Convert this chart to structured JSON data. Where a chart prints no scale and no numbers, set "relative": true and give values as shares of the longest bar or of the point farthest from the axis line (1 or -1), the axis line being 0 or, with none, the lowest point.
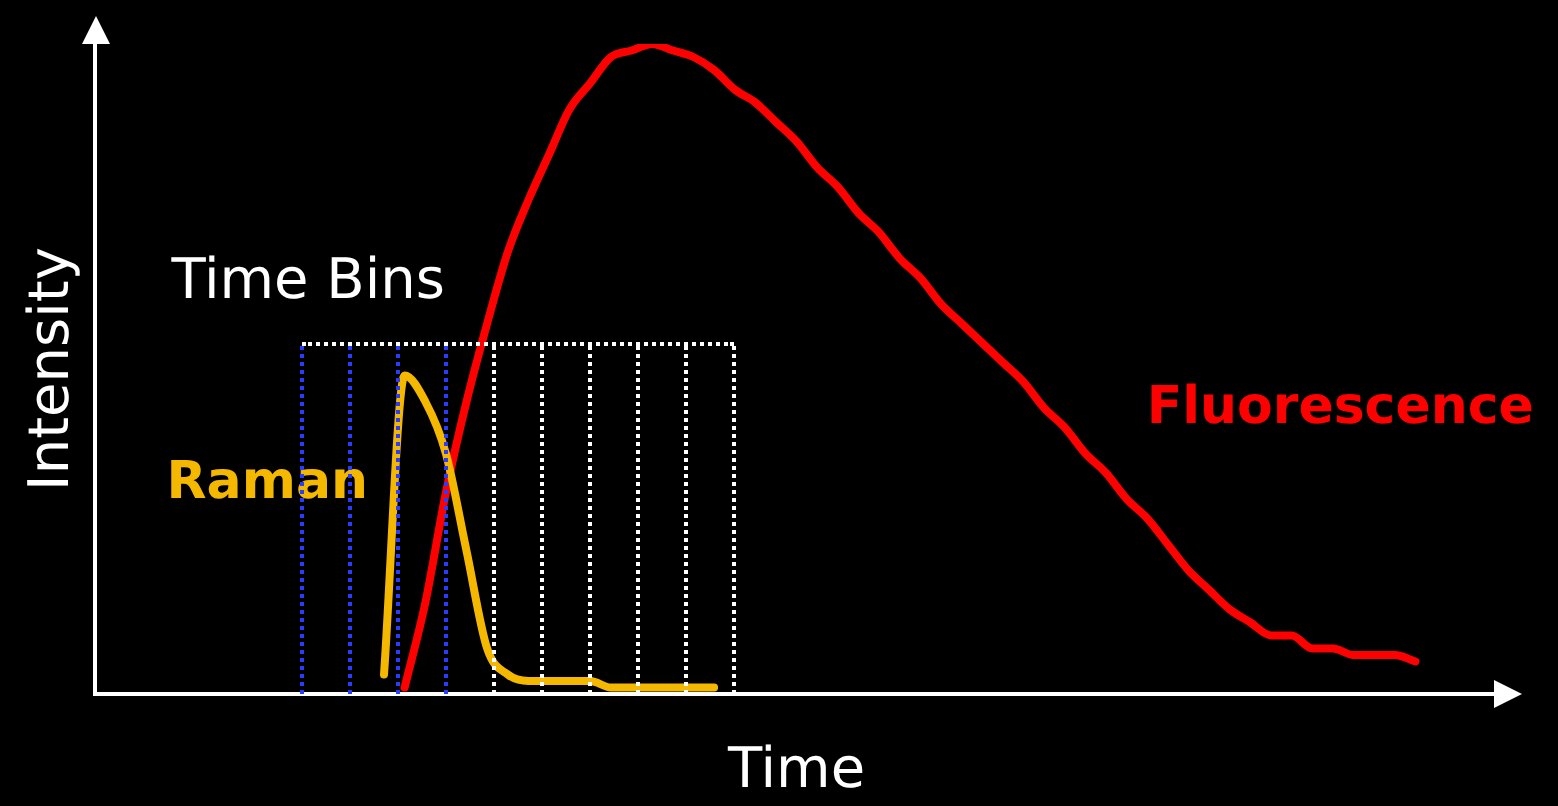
{
  "chart_data": {
    "type": "line",
    "relative": true,
    "xlabel": "Time",
    "ylabel": "Intensity",
    "marker": "none",
    "line_style": "solid",
    "annotations": [
      "Time Bins"
    ],
    "categories": [
      null,
      null,
      null,
      null,
      null,
      null,
      null,
      null,
      null,
      null,
      null,
      null,
      null,
      null,
      null,
      null,
      null,
      null,
      null,
      null,
      null,
      null,
      null,
      null,
      null,
      null,
      null,
      null,
      null,
      null,
      null,
      null,
      null,
      null,
      null,
      null,
      null,
      null,
      null,
      null,
      null,
      null,
      null,
      null,
      null,
      null,
      null,
      null,
      null,
      null,
      null,
      null,
      null,
      null,
      null,
      null,
      null,
      null,
      null,
      null,
      null,
      null,
      null,
      null,
      null,
      null,
      null,
      null,
      null
    ],
    "series": [
      {
        "name": "Raman",
        "color": "#f5b800",
        "values": [
          null,
          null,
          null,
          null,
          null,
          null,
          null,
          null,
          null,
          null,
          null,
          null,
          null,
          null,
          0.03,
          0.49,
          0.45,
          0.37,
          0.22,
          0.07,
          0.03,
          0.02,
          0.02,
          0.02,
          0.02,
          0.01,
          0.01,
          0.01,
          0.01,
          0.01,
          0.01,
          null,
          null,
          null,
          null,
          null,
          null,
          null,
          null,
          null,
          null,
          null,
          null,
          null,
          null,
          null,
          null,
          null,
          null,
          null,
          null,
          null,
          null,
          null,
          null,
          null,
          null,
          null,
          null,
          null,
          null,
          null,
          null,
          null,
          null,
          null,
          null,
          null,
          null
        ]
      },
      {
        "name": "Fluorescence",
        "color": "#ff0000",
        "values": [
          null,
          null,
          null,
          null,
          null,
          null,
          null,
          null,
          null,
          null,
          null,
          null,
          null,
          null,
          null,
          0.01,
          0.14,
          0.31,
          0.45,
          0.57,
          0.68,
          0.76,
          0.83,
          0.9,
          0.94,
          0.98,
          0.99,
          1,
          0.99,
          0.98,
          0.96,
          0.93,
          0.91,
          0.88,
          0.85,
          0.81,
          0.78,
          0.74,
          0.71,
          0.67,
          0.64,
          0.6,
          0.57,
          0.54,
          0.51,
          0.48,
          0.44,
          0.41,
          0.37,
          0.34,
          0.3,
          0.27,
          0.23,
          0.19,
          0.16,
          0.13,
          0.11,
          0.09,
          0.09,
          0.07,
          0.07,
          0.06,
          0.06,
          0.06,
          0.05,
          null,
          null,
          null,
          null
        ]
      }
    ]
  }
}
